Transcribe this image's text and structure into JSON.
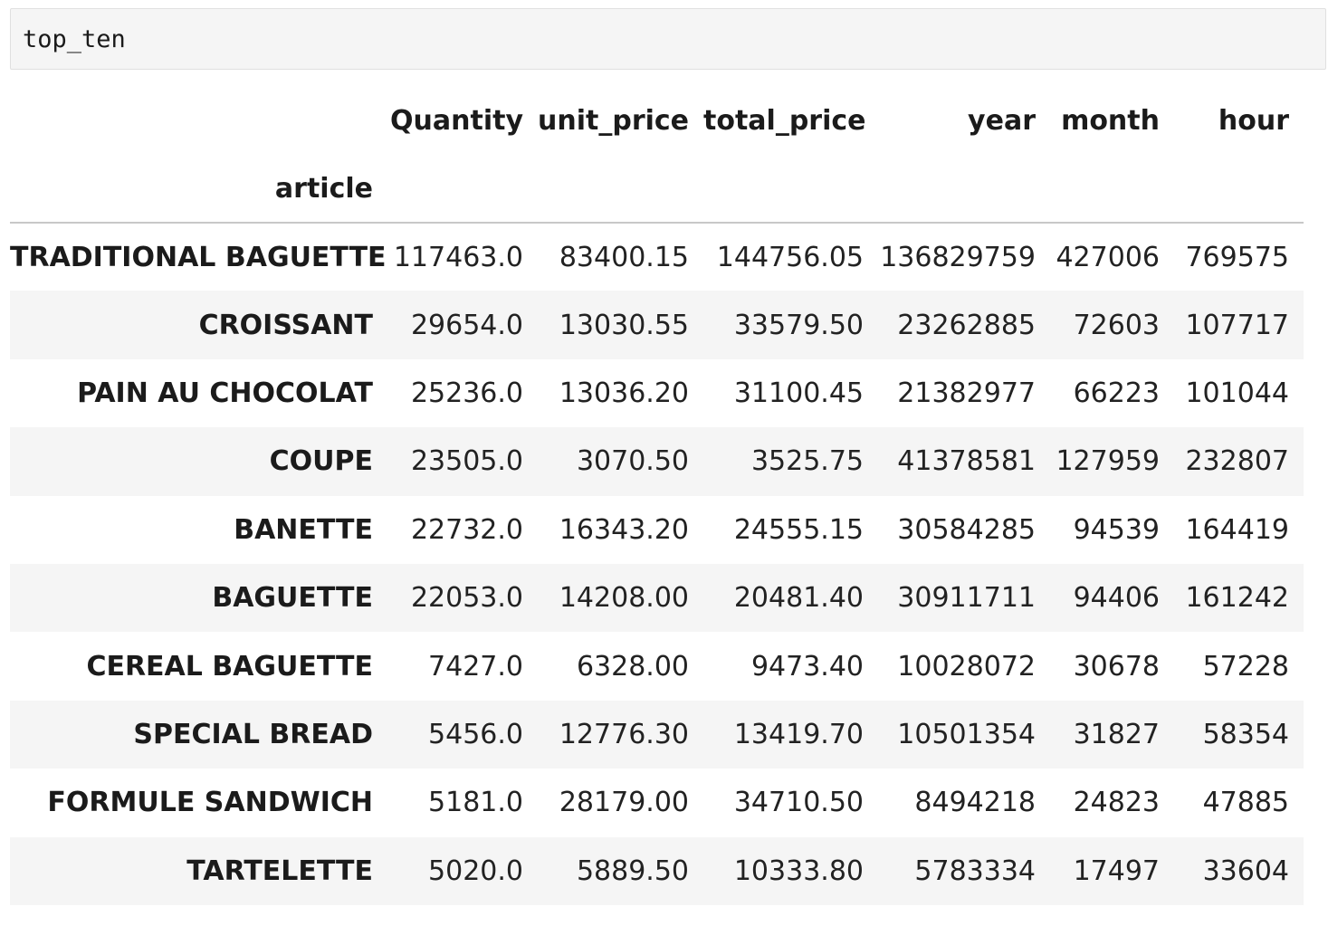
{
  "code_cell": {
    "source": "top_ten"
  },
  "dataframe": {
    "columns": [
      "Quantity",
      "unit_price",
      "total_price",
      "year",
      "month",
      "hour"
    ],
    "index_name": "article",
    "rows": [
      {
        "label": "TRADITIONAL BAGUETTE",
        "values": [
          "117463.0",
          "83400.15",
          "144756.05",
          "136829759",
          "427006",
          "769575"
        ]
      },
      {
        "label": "CROISSANT",
        "values": [
          "29654.0",
          "13030.55",
          "33579.50",
          "23262885",
          "72603",
          "107717"
        ]
      },
      {
        "label": "PAIN AU CHOCOLAT",
        "values": [
          "25236.0",
          "13036.20",
          "31100.45",
          "21382977",
          "66223",
          "101044"
        ]
      },
      {
        "label": "COUPE",
        "values": [
          "23505.0",
          "3070.50",
          "3525.75",
          "41378581",
          "127959",
          "232807"
        ]
      },
      {
        "label": "BANETTE",
        "values": [
          "22732.0",
          "16343.20",
          "24555.15",
          "30584285",
          "94539",
          "164419"
        ]
      },
      {
        "label": "BAGUETTE",
        "values": [
          "22053.0",
          "14208.00",
          "20481.40",
          "30911711",
          "94406",
          "161242"
        ]
      },
      {
        "label": "CEREAL BAGUETTE",
        "values": [
          "7427.0",
          "6328.00",
          "9473.40",
          "10028072",
          "30678",
          "57228"
        ]
      },
      {
        "label": "SPECIAL BREAD",
        "values": [
          "5456.0",
          "12776.30",
          "13419.70",
          "10501354",
          "31827",
          "58354"
        ]
      },
      {
        "label": "FORMULE SANDWICH",
        "values": [
          "5181.0",
          "28179.00",
          "34710.50",
          "8494218",
          "24823",
          "47885"
        ]
      },
      {
        "label": "TARTELETTE",
        "values": [
          "5020.0",
          "5889.50",
          "10333.80",
          "5783334",
          "17497",
          "33604"
        ]
      }
    ]
  },
  "colors": {
    "stripe": "#f5f5f5",
    "code_background": "#f5f5f5",
    "header_rule": "#c8c8c8"
  }
}
